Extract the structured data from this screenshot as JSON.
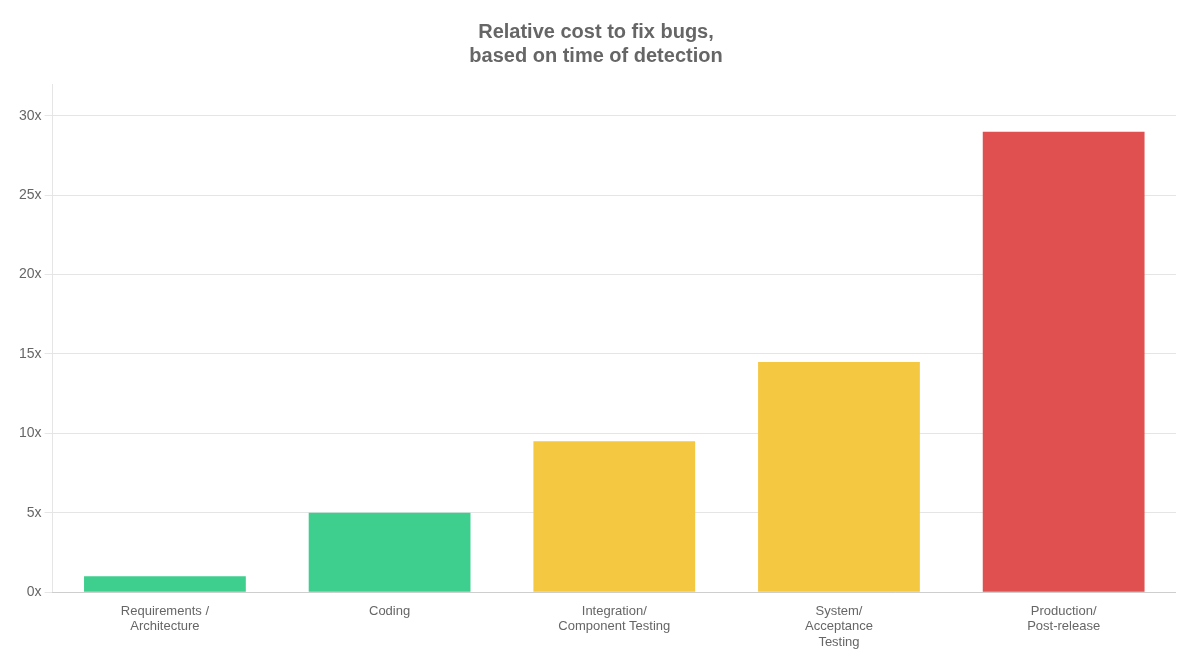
{
  "chart_data": {
    "type": "bar",
    "title": "Relative cost to fix bugs,\nbased on time of detection",
    "categories": [
      "Requirements /\nArchitecture",
      "Coding",
      "Integration/\nComponent Testing",
      "System/\nAcceptance\nTesting",
      "Production/\nPost-release"
    ],
    "values": [
      1,
      5,
      9.5,
      14.5,
      29
    ],
    "colors": [
      "#3ecf8e",
      "#3ecf8e",
      "#f5c842",
      "#f5c842",
      "#e05050"
    ],
    "ylim": [
      0,
      32
    ],
    "yticks": [
      {
        "value": 0,
        "label": "0x"
      },
      {
        "value": 5,
        "label": "5x"
      },
      {
        "value": 10,
        "label": "10x"
      },
      {
        "value": 15,
        "label": "15x"
      },
      {
        "value": 20,
        "label": "20x"
      },
      {
        "value": 25,
        "label": "25x"
      },
      {
        "value": 30,
        "label": "30x"
      }
    ],
    "grid": true
  }
}
